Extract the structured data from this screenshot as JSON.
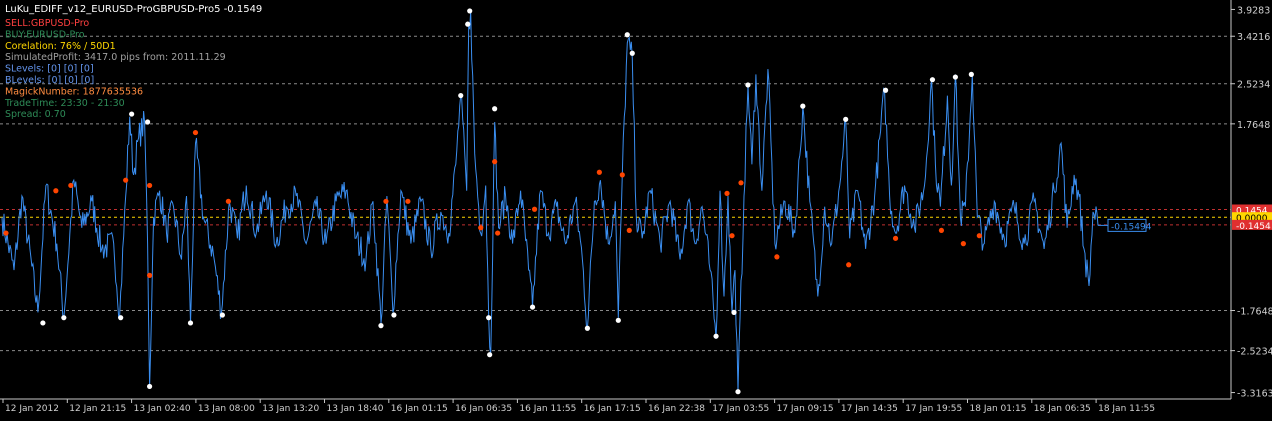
{
  "chart_data": {
    "type": "line",
    "title": "LuKu_EDIFF_v12_EURUSD-ProGBPUSD-Pro5 -0.1549",
    "info_lines": [
      {
        "text": "SELL:GBPUSD-Pro",
        "color": "#ff4040"
      },
      {
        "text": "BUY:EURUSD-Pro",
        "color": "#2e8b57"
      },
      {
        "text": "Corelation: 76% / 50D1",
        "color": "#ffd700"
      },
      {
        "text": "SimulatedProfit: 3417.0 pips from: 2011.11.29",
        "color": "#a0a0a0"
      },
      {
        "text": "SLevels: [0] [0] [0]",
        "color": "#6495ed"
      },
      {
        "text": "BLevels: [0] [0] [0]",
        "color": "#6495ed"
      },
      {
        "text": "MagickNumber: 1877635536",
        "color": "#ff8c40"
      },
      {
        "text": "TradeTime: 23:30 - 21:30",
        "color": "#2e8b57"
      },
      {
        "text": "Spread: 0.70",
        "color": "#2e8b57"
      }
    ],
    "ylim": [
      -3.4,
      4.05
    ],
    "y_ticks": [
      "3.9283",
      "3.4216",
      "2.5234",
      "1.7648",
      "-1.7648",
      "-2.5234",
      "-3.3163"
    ],
    "y_tick_values": [
      3.9283,
      3.4216,
      2.5234,
      1.7648,
      -1.7648,
      -2.5234,
      -3.3163
    ],
    "x_ticks": [
      "12 Jan 2012",
      "12 Jan 21:15",
      "13 Jan 02:40",
      "13 Jan 08:00",
      "13 Jan 13:20",
      "13 Jan 18:40",
      "16 Jan 01:15",
      "16 Jan 06:35",
      "16 Jan 11:55",
      "16 Jan 17:15",
      "16 Jan 22:38",
      "17 Jan 03:55",
      "17 Jan 09:15",
      "17 Jan 14:35",
      "17 Jan 19:55",
      "18 Jan 01:15",
      "18 Jan 06:35",
      "18 Jan 11:55"
    ],
    "dashed_levels": [
      3.4216,
      2.5234,
      1.7648,
      -1.7648,
      -2.5234
    ],
    "red_levels": [
      0.1454,
      -0.1454
    ],
    "yellow_level": 0.0,
    "level_labels": [
      {
        "text": "0.1454",
        "value": 0.1454,
        "color": "#ff3030"
      },
      {
        "text": "0.0000",
        "value": 0.0,
        "color": "#ffd700"
      },
      {
        "text": "-0.1454",
        "value": -0.1454,
        "color": "#ff3030"
      }
    ],
    "current_value_label": "-0.15494",
    "current_value": -0.1549,
    "series_color": "#3a8ef0",
    "n_points": 1100,
    "series_anchors": [
      [
        0,
        0.0
      ],
      [
        12,
        -1.0
      ],
      [
        20,
        0.4
      ],
      [
        36,
        -1.8
      ],
      [
        44,
        0.6
      ],
      [
        55,
        -0.5
      ],
      [
        62,
        -1.9
      ],
      [
        72,
        0.7
      ],
      [
        80,
        -0.2
      ],
      [
        90,
        0.3
      ],
      [
        100,
        -0.6
      ],
      [
        112,
        -0.5
      ],
      [
        118,
        -1.85
      ],
      [
        124,
        0.4
      ],
      [
        128,
        1.9
      ],
      [
        132,
        0.8
      ],
      [
        137,
        1.5
      ],
      [
        143,
        1.8
      ],
      [
        146,
        -0.5
      ],
      [
        148,
        -3.2
      ],
      [
        152,
        0.0
      ],
      [
        158,
        0.5
      ],
      [
        165,
        -0.3
      ],
      [
        172,
        0.2
      ],
      [
        180,
        -0.8
      ],
      [
        185,
        0.4
      ],
      [
        189,
        -2.0
      ],
      [
        194,
        1.4
      ],
      [
        202,
        0.0
      ],
      [
        212,
        -0.7
      ],
      [
        220,
        -1.8
      ],
      [
        228,
        0.3
      ],
      [
        236,
        -0.4
      ],
      [
        245,
        0.6
      ],
      [
        255,
        -0.3
      ],
      [
        265,
        0.5
      ],
      [
        275,
        -0.5
      ],
      [
        285,
        0.2
      ],
      [
        295,
        0.4
      ],
      [
        305,
        -0.5
      ],
      [
        315,
        0.2
      ],
      [
        325,
        -0.5
      ],
      [
        335,
        0.3
      ],
      [
        345,
        0.5
      ],
      [
        355,
        -0.4
      ],
      [
        365,
        -0.8
      ],
      [
        372,
        0.3
      ],
      [
        380,
        -2.0
      ],
      [
        386,
        0.4
      ],
      [
        392,
        -1.8
      ],
      [
        400,
        0.5
      ],
      [
        410,
        -0.5
      ],
      [
        420,
        0.3
      ],
      [
        430,
        -0.6
      ],
      [
        440,
        0.1
      ],
      [
        448,
        -0.3
      ],
      [
        455,
        1.0
      ],
      [
        460,
        2.3
      ],
      [
        466,
        0.5
      ],
      [
        468,
        3.6
      ],
      [
        470,
        3.9
      ],
      [
        474,
        1.2
      ],
      [
        480,
        -0.3
      ],
      [
        485,
        0.6
      ],
      [
        488,
        -1.9
      ],
      [
        490,
        -2.6
      ],
      [
        494,
        1.8
      ],
      [
        498,
        -0.2
      ],
      [
        505,
        0.4
      ],
      [
        512,
        -0.5
      ],
      [
        520,
        0.5
      ],
      [
        528,
        -1.0
      ],
      [
        532,
        -1.7
      ],
      [
        540,
        0.5
      ],
      [
        548,
        -0.3
      ],
      [
        556,
        0.2
      ],
      [
        565,
        -0.5
      ],
      [
        575,
        0.3
      ],
      [
        582,
        -0.8
      ],
      [
        587,
        -2.1
      ],
      [
        594,
        0.3
      ],
      [
        600,
        0.7
      ],
      [
        608,
        -0.5
      ],
      [
        615,
        0.3
      ],
      [
        618,
        -1.9
      ],
      [
        622,
        0.8
      ],
      [
        627,
        3.3
      ],
      [
        632,
        3.0
      ],
      [
        636,
        0.0
      ],
      [
        642,
        -0.4
      ],
      [
        650,
        0.5
      ],
      [
        660,
        -0.5
      ],
      [
        670,
        0.3
      ],
      [
        680,
        -0.8
      ],
      [
        688,
        0.3
      ],
      [
        695,
        -0.5
      ],
      [
        702,
        0.2
      ],
      [
        710,
        -1.0
      ],
      [
        716,
        -2.3
      ],
      [
        720,
        0.5
      ],
      [
        724,
        -1.5
      ],
      [
        728,
        0.4
      ],
      [
        732,
        -1.8
      ],
      [
        735,
        -1.0
      ],
      [
        738,
        -3.3
      ],
      [
        744,
        0.4
      ],
      [
        748,
        2.5
      ],
      [
        752,
        1.0
      ],
      [
        756,
        2.7
      ],
      [
        762,
        0.5
      ],
      [
        768,
        2.8
      ],
      [
        775,
        -0.5
      ],
      [
        785,
        0.3
      ],
      [
        795,
        -0.3
      ],
      [
        803,
        2.1
      ],
      [
        810,
        0.3
      ],
      [
        818,
        -1.5
      ],
      [
        825,
        0.2
      ],
      [
        832,
        -0.5
      ],
      [
        840,
        0.6
      ],
      [
        846,
        1.8
      ],
      [
        850,
        -0.4
      ],
      [
        858,
        0.5
      ],
      [
        866,
        -0.6
      ],
      [
        875,
        0.4
      ],
      [
        885,
        2.4
      ],
      [
        890,
        0.4
      ],
      [
        896,
        -0.3
      ],
      [
        905,
        0.6
      ],
      [
        915,
        -0.2
      ],
      [
        925,
        0.6
      ],
      [
        932,
        2.6
      ],
      [
        936,
        1.0
      ],
      [
        941,
        0.2
      ],
      [
        948,
        2.3
      ],
      [
        952,
        0.6
      ],
      [
        956,
        2.7
      ],
      [
        961,
        0.0
      ],
      [
        966,
        0.2
      ],
      [
        973,
        2.7
      ],
      [
        978,
        0.0
      ],
      [
        985,
        -0.5
      ],
      [
        995,
        0.3
      ],
      [
        1005,
        -0.4
      ],
      [
        1015,
        0.2
      ],
      [
        1025,
        -0.5
      ],
      [
        1035,
        0.3
      ],
      [
        1045,
        -0.6
      ],
      [
        1055,
        0.5
      ],
      [
        1062,
        1.4
      ],
      [
        1068,
        -0.2
      ],
      [
        1075,
        0.8
      ],
      [
        1080,
        0.4
      ],
      [
        1085,
        -0.6
      ],
      [
        1090,
        -1.3
      ],
      [
        1094,
        0.1
      ],
      [
        1099,
        -0.1549
      ]
    ],
    "white_dots": [
      [
        130,
        1.95
      ],
      [
        146,
        1.8
      ],
      [
        41,
        -2.0
      ],
      [
        62,
        -1.9
      ],
      [
        119,
        -1.9
      ],
      [
        148,
        -3.2
      ],
      [
        189,
        -2.0
      ],
      [
        221,
        -1.85
      ],
      [
        380,
        -2.05
      ],
      [
        393,
        -1.85
      ],
      [
        460,
        2.3
      ],
      [
        467,
        3.65
      ],
      [
        469,
        3.9
      ],
      [
        494,
        2.05
      ],
      [
        488,
        -1.9
      ],
      [
        489,
        -2.6
      ],
      [
        532,
        -1.7
      ],
      [
        587,
        -2.1
      ],
      [
        618,
        -1.95
      ],
      [
        627,
        3.45
      ],
      [
        632,
        3.1
      ],
      [
        716,
        -2.25
      ],
      [
        734,
        -1.8
      ],
      [
        738,
        -3.3
      ],
      [
        748,
        2.5
      ],
      [
        803,
        2.1
      ],
      [
        846,
        1.85
      ],
      [
        886,
        2.4
      ],
      [
        933,
        2.6
      ],
      [
        956,
        2.65
      ],
      [
        972,
        2.7
      ]
    ],
    "orange_dots": [
      [
        4,
        -0.3
      ],
      [
        54,
        0.5
      ],
      [
        69,
        0.6
      ],
      [
        124,
        0.7
      ],
      [
        148,
        0.6
      ],
      [
        194,
        1.6
      ],
      [
        227,
        0.3
      ],
      [
        148,
        -1.1
      ],
      [
        385,
        0.3
      ],
      [
        407,
        0.3
      ],
      [
        480,
        -0.2
      ],
      [
        494,
        1.05
      ],
      [
        497,
        -0.3
      ],
      [
        534,
        0.15
      ],
      [
        599,
        0.85
      ],
      [
        622,
        0.8
      ],
      [
        629,
        -0.25
      ],
      [
        727,
        0.45
      ],
      [
        741,
        0.65
      ],
      [
        732,
        -0.35
      ],
      [
        777,
        -0.75
      ],
      [
        849,
        -0.9
      ],
      [
        896,
        -0.4
      ],
      [
        942,
        -0.25
      ],
      [
        964,
        -0.5
      ],
      [
        980,
        -0.35
      ]
    ]
  }
}
